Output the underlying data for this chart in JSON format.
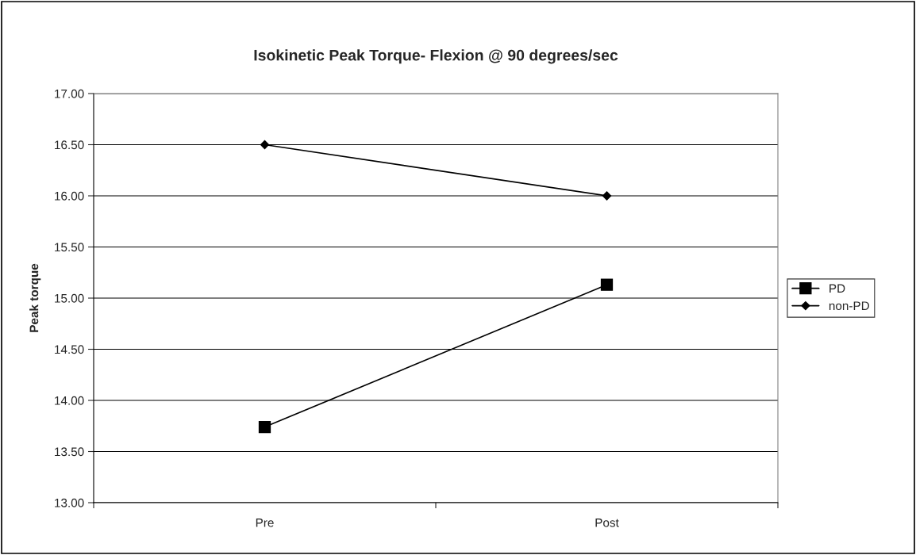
{
  "chart_data": {
    "type": "line",
    "title": "Isokinetic Peak Torque- Flexion @ 90 degrees/sec",
    "ylabel": "Peak torque",
    "categories": [
      "Pre",
      "Post"
    ],
    "series": [
      {
        "name": "PD",
        "color": "#000000",
        "marker": "square",
        "values": [
          13.74,
          15.13
        ]
      },
      {
        "name": "non-PD",
        "color": "#000000",
        "marker": "diamond",
        "values": [
          16.5,
          16.0
        ]
      }
    ],
    "ylim": [
      13.0,
      17.0
    ],
    "yticks": [
      {
        "value": 13.0,
        "label": "13.00"
      },
      {
        "value": 13.5,
        "label": "13.50"
      },
      {
        "value": 14.0,
        "label": "14.00"
      },
      {
        "value": 14.5,
        "label": "14.50"
      },
      {
        "value": 15.0,
        "label": "15.00"
      },
      {
        "value": 15.5,
        "label": "15.50"
      },
      {
        "value": 16.0,
        "label": "16.00"
      },
      {
        "value": 16.5,
        "label": "16.50"
      },
      {
        "value": 17.0,
        "label": "17.00"
      }
    ],
    "grid": "y",
    "legend": "right",
    "line_style": "solid"
  }
}
